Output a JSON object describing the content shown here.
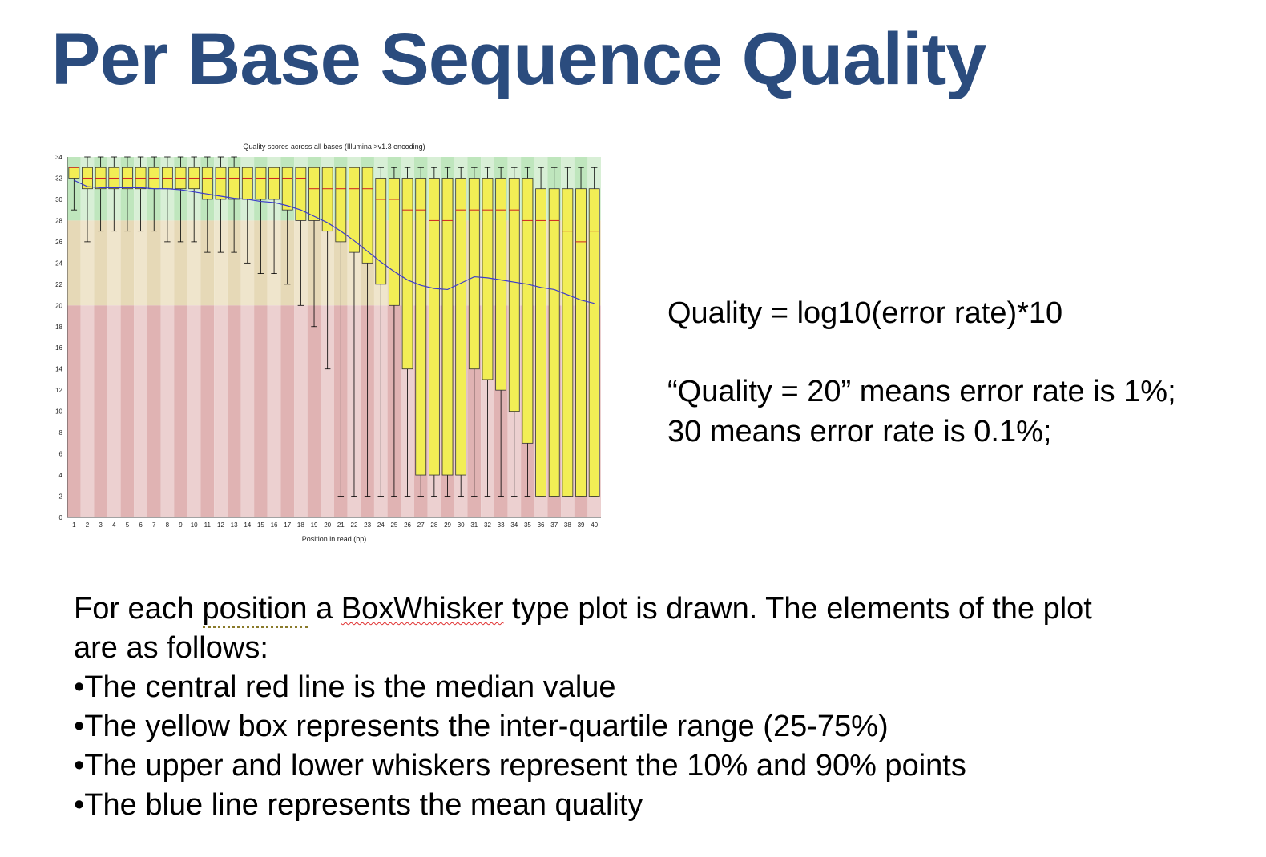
{
  "slide": {
    "title": "Per Base Sequence Quality"
  },
  "explanation": {
    "formula": "Quality = log10(error rate)*10",
    "line1": "“Quality = 20” means error rate is 1%;",
    "line2": "30 means error rate is 0.1%;"
  },
  "description": {
    "intro_part1": "For each ",
    "intro_word_position": "position",
    "intro_part2": " a ",
    "intro_word_boxwhisker": "BoxWhisker",
    "intro_part3": " type plot is drawn. The elements of the plot",
    "intro_line2": "are as follows:",
    "bullets": [
      "•The central red line is the median value",
      "•The yellow box represents the inter-quartile range (25-75%)",
      "•The upper and lower whiskers represent the 10% and 90% points",
      "•The blue line represents the mean quality"
    ]
  },
  "chart_data": {
    "type": "box",
    "title": "Quality scores across all bases (Illumina >v1.3 encoding)",
    "xlabel": "Position in read (bp)",
    "ylabel": "",
    "x": [
      1,
      2,
      3,
      4,
      5,
      6,
      7,
      8,
      9,
      10,
      11,
      12,
      13,
      14,
      15,
      16,
      17,
      18,
      19,
      20,
      21,
      22,
      23,
      24,
      25,
      26,
      27,
      28,
      29,
      30,
      31,
      32,
      33,
      34,
      35,
      36,
      37,
      38,
      39,
      40
    ],
    "ylim": [
      0,
      34
    ],
    "yticks": [
      0,
      2,
      4,
      6,
      8,
      10,
      12,
      14,
      16,
      18,
      20,
      22,
      24,
      26,
      28,
      30,
      32,
      34
    ],
    "zones": [
      {
        "name": "good",
        "from": 28,
        "to": 34,
        "color": "#bfe6bd",
        "color_alt": "#d8efd6"
      },
      {
        "name": "reasonable",
        "from": 20,
        "to": 28,
        "color": "#e6d9b7",
        "color_alt": "#efe5cc"
      },
      {
        "name": "poor",
        "from": 0,
        "to": 20,
        "color": "#e0b3b3",
        "color_alt": "#ecd0d0"
      }
    ],
    "box_color": "#f2ee55",
    "median_color": "#cc2222",
    "mean_color": "#3b3bcc",
    "q1": [
      32,
      31,
      31,
      31,
      31,
      31,
      31,
      31,
      31,
      31,
      30,
      30,
      30,
      30,
      30,
      30,
      29,
      28,
      28,
      27,
      26,
      25,
      24,
      22,
      20,
      14,
      4,
      4,
      4,
      4,
      14,
      13,
      12,
      10,
      7,
      2,
      2,
      2,
      2,
      2
    ],
    "q3": [
      33,
      33,
      33,
      33,
      33,
      33,
      33,
      33,
      33,
      33,
      33,
      33,
      33,
      33,
      33,
      33,
      33,
      33,
      33,
      33,
      33,
      33,
      33,
      32,
      32,
      32,
      32,
      32,
      32,
      32,
      32,
      32,
      32,
      32,
      32,
      31,
      31,
      31,
      31,
      31
    ],
    "median": [
      33,
      32,
      32,
      32,
      32,
      32,
      32,
      32,
      32,
      32,
      32,
      32,
      32,
      32,
      32,
      32,
      32,
      32,
      31,
      31,
      31,
      31,
      31,
      30,
      30,
      29,
      29,
      28,
      28,
      29,
      29,
      29,
      29,
      29,
      28,
      28,
      28,
      27,
      26,
      27
    ],
    "whisker_low": [
      29,
      26,
      27,
      27,
      27,
      27,
      27,
      26,
      26,
      26,
      25,
      25,
      25,
      24,
      23,
      23,
      22,
      20,
      18,
      14,
      2,
      2,
      2,
      2,
      2,
      2,
      2,
      2,
      2,
      2,
      2,
      2,
      2,
      2,
      2,
      2,
      2,
      2,
      2,
      2
    ],
    "whisker_high": [
      33,
      34,
      34,
      34,
      34,
      34,
      34,
      34,
      34,
      34,
      34,
      34,
      34,
      33,
      33,
      33,
      33,
      33,
      33,
      33,
      33,
      33,
      33,
      33,
      33,
      33,
      33,
      33,
      33,
      33,
      33,
      33,
      33,
      33,
      33,
      33,
      33,
      33,
      33,
      33
    ],
    "mean": [
      31.8,
      31.2,
      31.1,
      31.1,
      31.1,
      31.1,
      31.0,
      31.0,
      30.9,
      30.7,
      30.5,
      30.3,
      30.1,
      30.0,
      29.8,
      29.7,
      29.4,
      29.0,
      28.4,
      27.8,
      27.0,
      26.1,
      25.1,
      24.1,
      23.2,
      22.4,
      21.9,
      21.6,
      21.5,
      22.1,
      22.7,
      22.6,
      22.4,
      22.2,
      22.0,
      21.7,
      21.5,
      21.0,
      20.5,
      20.2
    ]
  }
}
